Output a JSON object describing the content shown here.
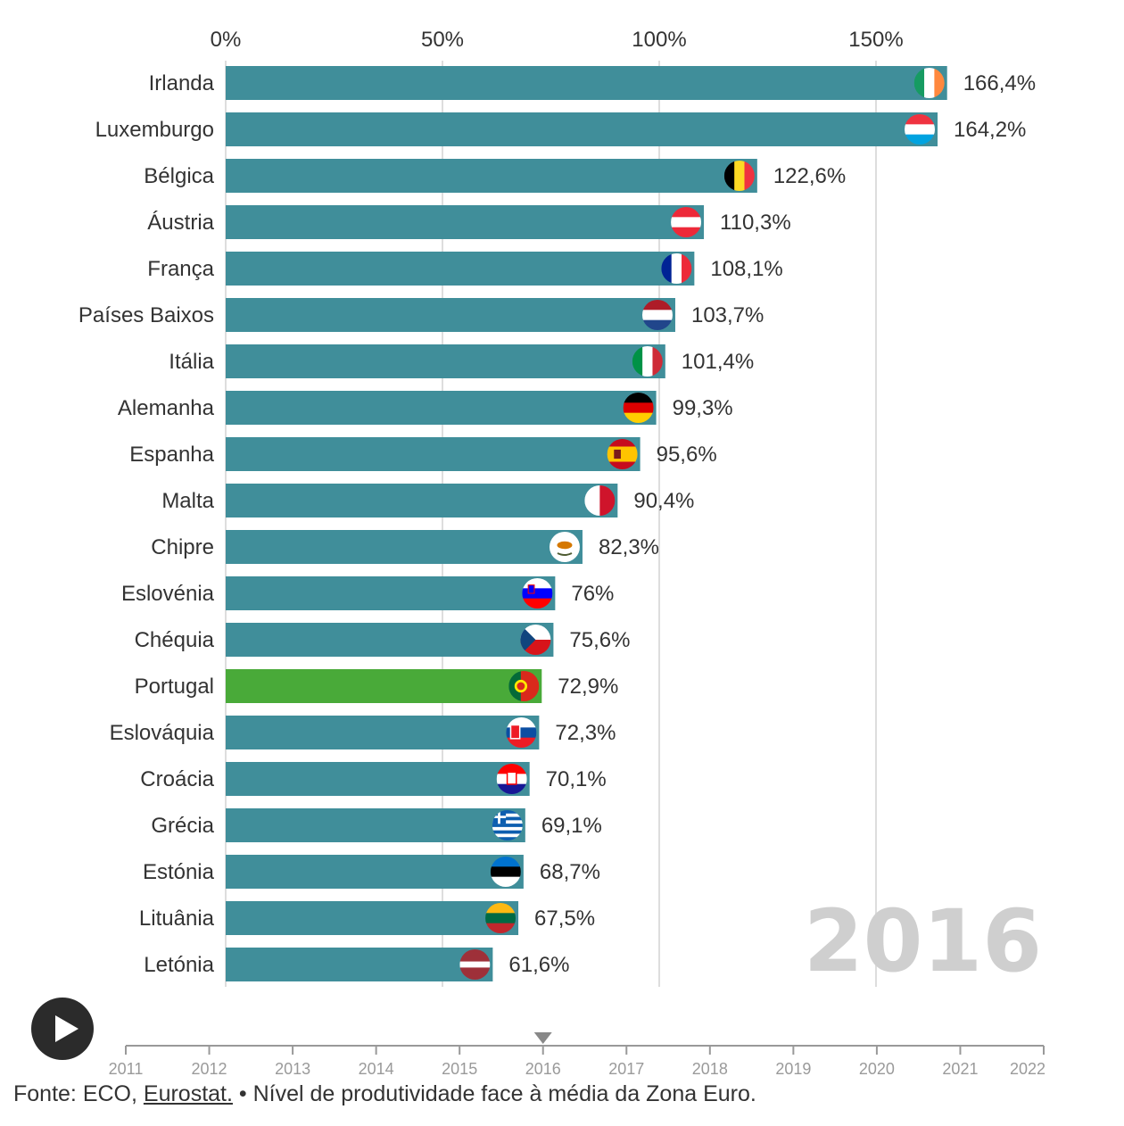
{
  "chart_data": {
    "type": "bar",
    "orientation": "horizontal",
    "x_tick_labels": [
      "0%",
      "50%",
      "100%",
      "150%"
    ],
    "x_ticks": [
      0,
      50,
      100,
      150
    ],
    "xlim": [
      0,
      175
    ],
    "grid": true,
    "categories": [
      "Irlanda",
      "Luxemburgo",
      "Bélgica",
      "Áustria",
      "França",
      "Países Baixos",
      "Itália",
      "Alemanha",
      "Espanha",
      "Malta",
      "Chipre",
      "Eslovénia",
      "Chéquia",
      "Portugal",
      "Eslováquia",
      "Croácia",
      "Grécia",
      "Estónia",
      "Lituânia",
      "Letónia"
    ],
    "values": [
      166.4,
      164.2,
      122.6,
      110.3,
      108.1,
      103.7,
      101.4,
      99.3,
      95.6,
      90.4,
      82.3,
      76,
      75.6,
      72.9,
      72.3,
      70.1,
      69.1,
      68.7,
      67.5,
      61.6
    ],
    "value_labels": [
      "166,4%",
      "164,2%",
      "122,6%",
      "110,3%",
      "108,1%",
      "103,7%",
      "101,4%",
      "99,3%",
      "95,6%",
      "90,4%",
      "82,3%",
      "76%",
      "75,6%",
      "72,9%",
      "72,3%",
      "70,1%",
      "69,1%",
      "68,7%",
      "67,5%",
      "61,6%"
    ],
    "flag_icons": [
      "flag-ireland-icon",
      "flag-luxembourg-icon",
      "flag-belgium-icon",
      "flag-austria-icon",
      "flag-france-icon",
      "flag-netherlands-icon",
      "flag-italy-icon",
      "flag-germany-icon",
      "flag-spain-icon",
      "flag-malta-icon",
      "flag-cyprus-icon",
      "flag-slovenia-icon",
      "flag-czechia-icon",
      "flag-portugal-icon",
      "flag-slovakia-icon",
      "flag-croatia-icon",
      "flag-greece-icon",
      "flag-estonia-icon",
      "flag-lithuania-icon",
      "flag-latvia-icon"
    ],
    "highlight": "Portugal",
    "colors": {
      "bar": "#3c8c98",
      "highlight": "#45a835",
      "grid": "#dddddd",
      "year_label": "#cfcfcf"
    },
    "current_year": "2016"
  },
  "timeline": {
    "years": [
      "2011",
      "2012",
      "2013",
      "2014",
      "2015",
      "2016",
      "2017",
      "2018",
      "2019",
      "2020",
      "2021",
      "2022"
    ],
    "current": "2016",
    "play_icon": "play-icon"
  },
  "footer": {
    "prefix": "Fonte: ECO, ",
    "link_text": "Eurostat.",
    "suffix": " • Nível de produtividade face à média da Zona Euro."
  }
}
